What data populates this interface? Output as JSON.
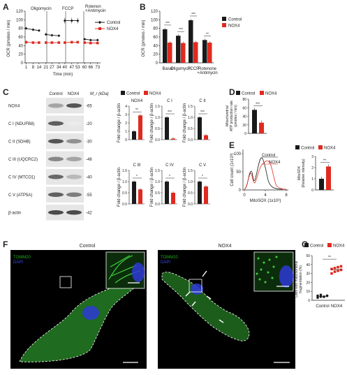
{
  "colors": {
    "control": "#1a1a1a",
    "nox4": "#e02a20",
    "tomm20": "#22aa22",
    "dapi": "#2e3ad6",
    "micro_bg": "#000000"
  },
  "panels": {
    "A": "A",
    "B": "B",
    "C": "C",
    "D": "D",
    "E": "E",
    "F": "F",
    "G": "G"
  },
  "legend": {
    "control": "Control",
    "nox4": "NOX4"
  },
  "chart_data": [
    {
      "id": "A",
      "type": "line",
      "xlabel": "Time (min)",
      "ylabel": "OCR (pmoles / min)",
      "x": [
        1,
        8,
        14,
        21,
        27,
        34,
        40,
        47,
        53,
        60,
        66,
        73
      ],
      "x_ticks": [
        "1",
        "8",
        "14",
        "21",
        "27",
        "34",
        "40",
        "47",
        "53",
        "60",
        "66",
        "73"
      ],
      "ylim": [
        0,
        120
      ],
      "y_ticks": [
        "0",
        "20",
        "40",
        "60",
        "80",
        "100",
        "120"
      ],
      "phases": [
        "Oligomycin",
        "FCCP",
        "Rotenon\n+Antimycin"
      ],
      "series": [
        {
          "name": "Control",
          "values": [
            80,
            77,
            75,
            66,
            64,
            63,
            98,
            98,
            98,
            55,
            53,
            53
          ]
        },
        {
          "name": "NOX4",
          "values": [
            48,
            47,
            47,
            47,
            47,
            47,
            47,
            48,
            48,
            47,
            46,
            46
          ]
        }
      ]
    },
    {
      "id": "B",
      "type": "bar",
      "ylabel": "OCR (pmoles / min)",
      "ylim": [
        0,
        120
      ],
      "y_ticks": [
        "0",
        "20",
        "40",
        "60",
        "80",
        "100",
        "120"
      ],
      "categories": [
        "Basal",
        "Oligomycin",
        "FCCP",
        "Rotenone\n+Antimycin"
      ],
      "series": [
        {
          "name": "Control",
          "values": [
            78,
            63,
            99,
            53
          ]
        },
        {
          "name": "NOX4",
          "values": [
            47,
            46,
            48,
            47
          ]
        }
      ],
      "sig": [
        "***",
        "***",
        "***",
        "**"
      ]
    },
    {
      "id": "C_blot",
      "type": "table",
      "lanes": [
        "Control",
        "NOX4"
      ],
      "mw_title": "M_r (kDa)",
      "rows": [
        {
          "label": "NOX4",
          "mw": "-65"
        },
        {
          "label": "C I (NDUFB8)",
          "mw": "-20"
        },
        {
          "label": "C II (SDHB)",
          "mw": "-30"
        },
        {
          "label": "C III (UQCRC2)",
          "mw": "-48"
        },
        {
          "label": "C IV (MTCO1)",
          "mw": "-40"
        },
        {
          "label": "C V (ATP5A)",
          "mw": "-55"
        },
        {
          "label": "β-actin",
          "mw": "-42"
        }
      ]
    },
    {
      "id": "C_quant",
      "type": "bar",
      "ylabel": "Fold change / β-actin",
      "subplots": [
        {
          "title": "NOX4",
          "ylim": [
            0,
            4
          ],
          "y_ticks": [
            "0",
            "1",
            "2",
            "3",
            "4"
          ],
          "values": [
            1,
            2.9
          ],
          "sig": "**"
        },
        {
          "title": "C I",
          "ylim": [
            0,
            1.5
          ],
          "y_ticks": [
            "0.0",
            "0.5",
            "1.0",
            "1.5"
          ],
          "values": [
            1,
            0.05
          ],
          "sig": "***"
        },
        {
          "title": "C II",
          "ylim": [
            0,
            1.5
          ],
          "y_ticks": [
            "0.0",
            "0.5",
            "1.0",
            "1.5"
          ],
          "values": [
            1,
            0.2
          ],
          "sig": "***"
        },
        {
          "title": "C III",
          "ylim": [
            0,
            1.5
          ],
          "y_ticks": [
            "0.0",
            "0.5",
            "1.0",
            "1.5"
          ],
          "values": [
            1,
            0.65
          ],
          "sig": "*"
        },
        {
          "title": "C IV",
          "ylim": [
            0,
            1.5
          ],
          "y_ticks": [
            "0.0",
            "0.5",
            "1.0",
            "1.5"
          ],
          "values": [
            1,
            0.5
          ],
          "sig": "*"
        },
        {
          "title": "C V",
          "ylim": [
            0,
            1.5
          ],
          "y_ticks": [
            "0.0",
            "0.5",
            "1.0",
            "1.5"
          ],
          "values": [
            1,
            0.78
          ],
          "sig": "*"
        }
      ]
    },
    {
      "id": "D",
      "type": "bar",
      "ylabel": "Mitochondrial\nATP production rate\n(pmoles / min)",
      "ylim": [
        0,
        80
      ],
      "y_ticks": [
        "0",
        "20",
        "40",
        "60",
        "80"
      ],
      "series": [
        {
          "name": "Control",
          "values": [
            55
          ]
        },
        {
          "name": "NOX4",
          "values": [
            25
          ]
        }
      ],
      "sig": "***"
    },
    {
      "id": "E_hist",
      "type": "line",
      "xlabel": "MitoSOX (1x10³)",
      "ylabel": "Cell count (1x10³)",
      "x_ticks": [
        "0",
        "4",
        "8"
      ],
      "y_ticks": [
        "0",
        "50",
        "100"
      ],
      "legend": [
        "Control",
        "NOX4"
      ]
    },
    {
      "id": "E_bar",
      "type": "bar",
      "ylabel": "MitoSOX\n(Relative intensity)",
      "ylim": [
        0,
        3
      ],
      "y_ticks": [
        "0",
        "1",
        "2",
        "3"
      ],
      "series": [
        {
          "name": "Control",
          "values": [
            1
          ]
        },
        {
          "name": "NOX4",
          "values": [
            2.1
          ]
        }
      ],
      "sig": "**"
    },
    {
      "id": "G",
      "type": "scatter",
      "ylabel": "Cells with mitochondrial\nfragmentation (%)",
      "ylim": [
        0,
        50
      ],
      "y_ticks": [
        "0",
        "10",
        "20",
        "30",
        "40",
        "50"
      ],
      "categories": [
        "Control",
        "NOX4"
      ],
      "points": [
        [
          3,
          4,
          4,
          5,
          5,
          6,
          4,
          5
        ],
        [
          30,
          32,
          33,
          34,
          35,
          36,
          37,
          38
        ]
      ],
      "sig": "**"
    }
  ],
  "micro": {
    "control_title": "Control",
    "nox4_title": "NOX4",
    "tomm20": "TOMM20",
    "dapi": "DAPI"
  }
}
